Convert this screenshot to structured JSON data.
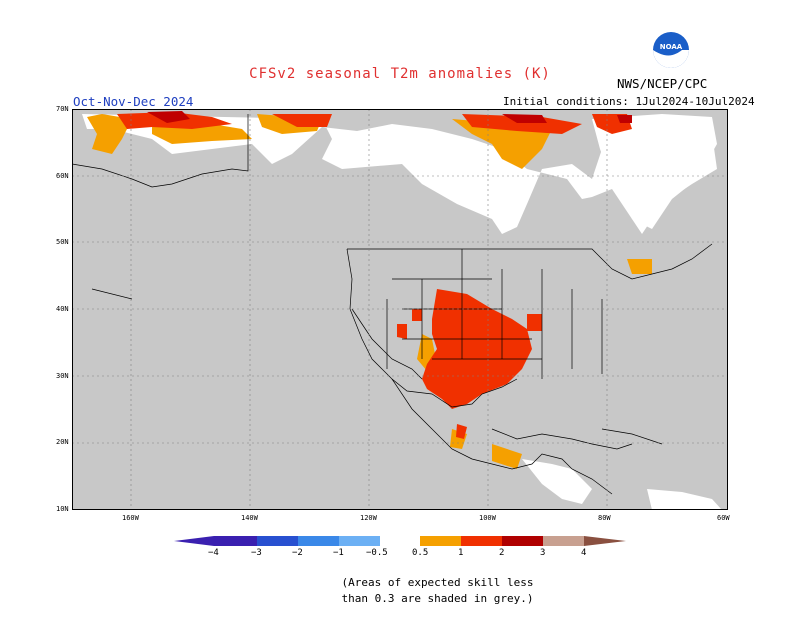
{
  "header": {
    "title": "CFSv2 seasonal T2m anomalies (K)",
    "period": "Oct-Nov-Dec 2024",
    "initial_conditions": "Initial conditions: 1Jul2024-10Jul2024",
    "agency": "NWS/NCEP/CPC",
    "logo_text": "NOAA"
  },
  "map": {
    "lat_labels": [
      "70N",
      "60N",
      "50N",
      "40N",
      "30N",
      "20N",
      "10N"
    ],
    "lon_labels": [
      "160W",
      "140W",
      "120W",
      "100W",
      "80W",
      "60W"
    ],
    "colors": {
      "no_skill": "#c8c8c8",
      "land_skill_neutral": "#ffffff",
      "anom_0_5_1": "#f5a000",
      "anom_1_2": "#f03000",
      "anom_2_3": "#c00000"
    }
  },
  "colorbar": {
    "labels": [
      "−4",
      "−3",
      "−2",
      "−1",
      "−0.5",
      "0.5",
      "1",
      "2",
      "3",
      "4"
    ],
    "colors": [
      "#3a20b0",
      "#2850d0",
      "#3a88e8",
      "#6cb0f4",
      "#ffffff",
      "#f5a000",
      "#f03000",
      "#b00000",
      "#c8a090",
      "#8a5040"
    ]
  },
  "footnote": {
    "line1": "(Areas of expected skill less",
    "line2": "than 0.3 are shaded in grey.)"
  }
}
